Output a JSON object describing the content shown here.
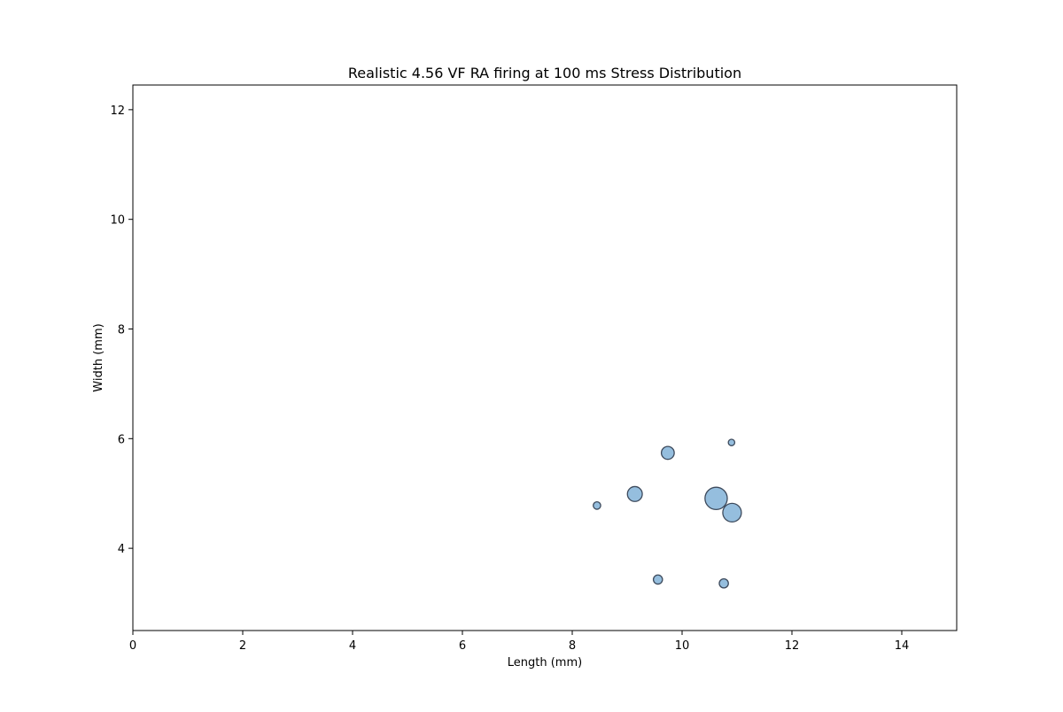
{
  "chart_data": {
    "type": "scatter",
    "title": "Realistic 4.56 VF RA firing at 100 ms Stress Distribution",
    "xlabel": "Length (mm)",
    "ylabel": "Width (mm)",
    "xlim": [
      0,
      15
    ],
    "ylim": [
      2.5,
      12.45
    ],
    "xticks": [
      0,
      2,
      4,
      6,
      8,
      10,
      12,
      14
    ],
    "yticks": [
      4,
      6,
      8,
      10,
      12
    ],
    "grid": false,
    "legend": "none",
    "marker_color": "#7aaed6",
    "marker_edge_color": "#3d4a5c",
    "points": [
      {
        "x": 8.45,
        "y": 4.78,
        "size": 4
      },
      {
        "x": 9.14,
        "y": 4.99,
        "size": 16
      },
      {
        "x": 9.56,
        "y": 3.43,
        "size": 6
      },
      {
        "x": 9.74,
        "y": 5.74,
        "size": 12
      },
      {
        "x": 10.62,
        "y": 4.91,
        "size": 36
      },
      {
        "x": 10.76,
        "y": 3.36,
        "size": 6
      },
      {
        "x": 10.9,
        "y": 5.93,
        "size": 3
      },
      {
        "x": 10.91,
        "y": 4.65,
        "size": 25
      }
    ]
  }
}
